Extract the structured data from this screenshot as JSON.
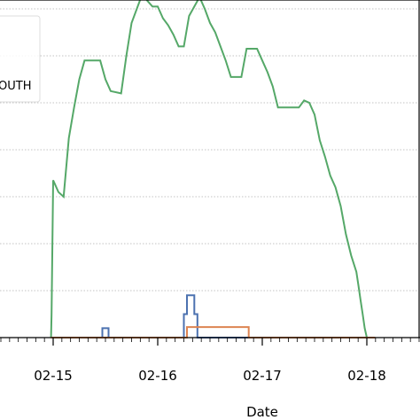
{
  "chart_data": {
    "type": "line",
    "xlabel": "Date",
    "x_tick_labels": [
      "02-15",
      "02-16",
      "02-17",
      "02-18"
    ],
    "grid": "horizontal dotted",
    "legend": {
      "placement": "top-left",
      "visible_text": "OUTH"
    },
    "series": [
      {
        "color": "#55a868",
        "points": [
          [
            -0.02,
            0
          ],
          [
            -0.015,
            1
          ],
          [
            0.0,
            6.7
          ],
          [
            0.05,
            6.2
          ],
          [
            0.1,
            6.0
          ],
          [
            0.15,
            8.5
          ],
          [
            0.2,
            9.8
          ],
          [
            0.25,
            11.0
          ],
          [
            0.3,
            11.8
          ],
          [
            0.45,
            11.8
          ],
          [
            0.5,
            11.0
          ],
          [
            0.55,
            10.5
          ],
          [
            0.65,
            10.4
          ],
          [
            0.7,
            12.0
          ],
          [
            0.75,
            13.4
          ],
          [
            0.85,
            14.6
          ],
          [
            0.95,
            14.1
          ],
          [
            1.0,
            14.1
          ],
          [
            1.05,
            13.6
          ],
          [
            1.1,
            13.3
          ],
          [
            1.15,
            12.9
          ],
          [
            1.2,
            12.4
          ],
          [
            1.25,
            12.4
          ],
          [
            1.3,
            13.7
          ],
          [
            1.35,
            14.1
          ],
          [
            1.4,
            14.5
          ],
          [
            1.45,
            14.0
          ],
          [
            1.5,
            13.4
          ],
          [
            1.55,
            13.0
          ],
          [
            1.6,
            12.4
          ],
          [
            1.65,
            11.8
          ],
          [
            1.7,
            11.1
          ],
          [
            1.8,
            11.1
          ],
          [
            1.85,
            12.3
          ],
          [
            1.95,
            12.3
          ],
          [
            2.0,
            11.8
          ],
          [
            2.05,
            11.3
          ],
          [
            2.1,
            10.7
          ],
          [
            2.15,
            9.8
          ],
          [
            2.35,
            9.8
          ],
          [
            2.4,
            10.1
          ],
          [
            2.45,
            10.0
          ],
          [
            2.5,
            9.5
          ],
          [
            2.55,
            8.4
          ],
          [
            2.6,
            7.7
          ],
          [
            2.65,
            6.9
          ],
          [
            2.7,
            6.4
          ],
          [
            2.75,
            5.6
          ],
          [
            2.8,
            4.4
          ],
          [
            2.85,
            3.5
          ],
          [
            2.9,
            2.8
          ],
          [
            2.92,
            2.2
          ],
          [
            2.94,
            1.6
          ],
          [
            2.96,
            1.0
          ],
          [
            2.98,
            0.4
          ],
          [
            3.0,
            0
          ]
        ]
      },
      {
        "color": "#4c72b0",
        "points": [
          [
            -0.02,
            0
          ],
          [
            0.47,
            0
          ],
          [
            0.47,
            0.4
          ],
          [
            0.53,
            0.4
          ],
          [
            0.53,
            0
          ],
          [
            1.25,
            0
          ],
          [
            1.25,
            1.0
          ],
          [
            1.28,
            1.0
          ],
          [
            1.28,
            1.8
          ],
          [
            1.35,
            1.8
          ],
          [
            1.35,
            1.0
          ],
          [
            1.38,
            1.0
          ],
          [
            1.38,
            0
          ],
          [
            3.08,
            0
          ]
        ]
      },
      {
        "color": "#dd8452",
        "points": [
          [
            -0.02,
            0
          ],
          [
            1.28,
            0
          ],
          [
            1.28,
            0.45
          ],
          [
            1.87,
            0.45
          ],
          [
            1.87,
            0
          ],
          [
            3.08,
            0
          ]
        ]
      }
    ]
  }
}
